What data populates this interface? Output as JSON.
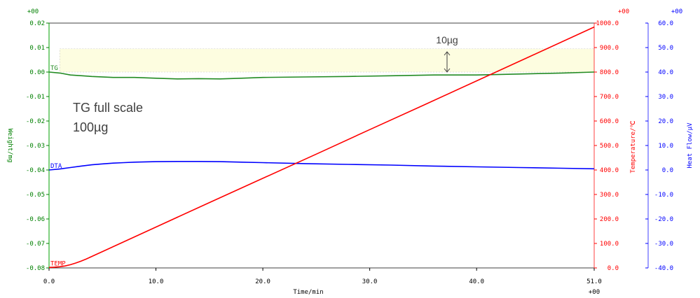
{
  "chart_data": {
    "type": "line",
    "x_axis": {
      "label": "Time/min",
      "range": [
        0,
        51
      ],
      "ticks": [
        "0.0",
        "10.0",
        "20.0",
        "30.0",
        "40.0",
        "51.0"
      ],
      "exponent": "+00"
    },
    "left_axis": {
      "label": "Weight/mg",
      "exponent": "+00",
      "range": [
        -0.08,
        0.02
      ],
      "ticks": [
        "0.02",
        "0.01",
        "0.00",
        "-0.01",
        "-0.02",
        "-0.03",
        "-0.04",
        "-0.05",
        "-0.06",
        "-0.07",
        "-0.08"
      ],
      "color": "#008000"
    },
    "right_axis_temp": {
      "label": "Temperature/℃",
      "exponent": "+00",
      "range": [
        0,
        1000
      ],
      "ticks": [
        "1000.0",
        "900.0",
        "800.0",
        "700.0",
        "600.0",
        "500.0",
        "400.0",
        "300.0",
        "200.0",
        "100.0",
        "0.0"
      ],
      "color": "#ff0000"
    },
    "right_axis_heat": {
      "label": "Heat Flow/µV",
      "exponent": "+00",
      "range": [
        -40,
        60
      ],
      "ticks": [
        "60.0",
        "50.0",
        "40.0",
        "30.0",
        "20.0",
        "10.0",
        "0.0",
        "-10.0",
        "-20.0",
        "-30.0",
        "-40.0"
      ],
      "color": "#0000ff"
    },
    "series": [
      {
        "name": "TG",
        "axis": "left",
        "color": "#228b22",
        "points": [
          [
            0,
            0.0
          ],
          [
            1,
            -0.0004
          ],
          [
            2,
            -0.0012
          ],
          [
            4,
            -0.0018
          ],
          [
            6,
            -0.0022
          ],
          [
            8,
            -0.0022
          ],
          [
            10,
            -0.0025
          ],
          [
            12,
            -0.0028
          ],
          [
            14,
            -0.0027
          ],
          [
            16,
            -0.0028
          ],
          [
            18,
            -0.0025
          ],
          [
            20,
            -0.0022
          ],
          [
            24,
            -0.002
          ],
          [
            28,
            -0.0018
          ],
          [
            32,
            -0.0015
          ],
          [
            36,
            -0.0012
          ],
          [
            40,
            -0.0012
          ],
          [
            44,
            -0.0008
          ],
          [
            48,
            -0.0004
          ],
          [
            51,
            0.0
          ]
        ]
      },
      {
        "name": "DTA",
        "axis": "heat",
        "color": "#0000ff",
        "points": [
          [
            0,
            0.0
          ],
          [
            1,
            0.4
          ],
          [
            2,
            1.0
          ],
          [
            3,
            1.6
          ],
          [
            4,
            2.1
          ],
          [
            5,
            2.5
          ],
          [
            6,
            2.8
          ],
          [
            7,
            3.0
          ],
          [
            8,
            3.2
          ],
          [
            9,
            3.3
          ],
          [
            10,
            3.4
          ],
          [
            12,
            3.5
          ],
          [
            14,
            3.5
          ],
          [
            16,
            3.4
          ],
          [
            18,
            3.2
          ],
          [
            20,
            3.0
          ],
          [
            24,
            2.6
          ],
          [
            28,
            2.3
          ],
          [
            32,
            2.0
          ],
          [
            36,
            1.6
          ],
          [
            40,
            1.3
          ],
          [
            44,
            1.0
          ],
          [
            48,
            0.7
          ],
          [
            51,
            0.5
          ]
        ]
      },
      {
        "name": "TEMP",
        "axis": "temp",
        "color": "#ff0000",
        "points": [
          [
            0,
            2
          ],
          [
            0.5,
            3
          ],
          [
            1,
            5
          ],
          [
            1.5,
            8
          ],
          [
            2,
            13
          ],
          [
            2.5,
            20
          ],
          [
            3,
            28
          ],
          [
            3.5,
            37
          ],
          [
            4,
            47
          ],
          [
            4.5,
            57
          ],
          [
            5,
            67
          ],
          [
            6,
            87
          ],
          [
            8,
            127
          ],
          [
            10,
            167
          ],
          [
            15,
            267
          ],
          [
            20,
            366
          ],
          [
            25,
            465
          ],
          [
            30,
            565
          ],
          [
            35,
            664
          ],
          [
            40,
            764
          ],
          [
            45,
            864
          ],
          [
            51,
            984
          ]
        ]
      }
    ],
    "annotations": {
      "scale_note_line1": "TG full scale",
      "scale_note_line2": "100µg",
      "band_label": "10µg",
      "band_range": [
        0.0,
        0.0095
      ],
      "band_color": "#fdfde0"
    }
  }
}
